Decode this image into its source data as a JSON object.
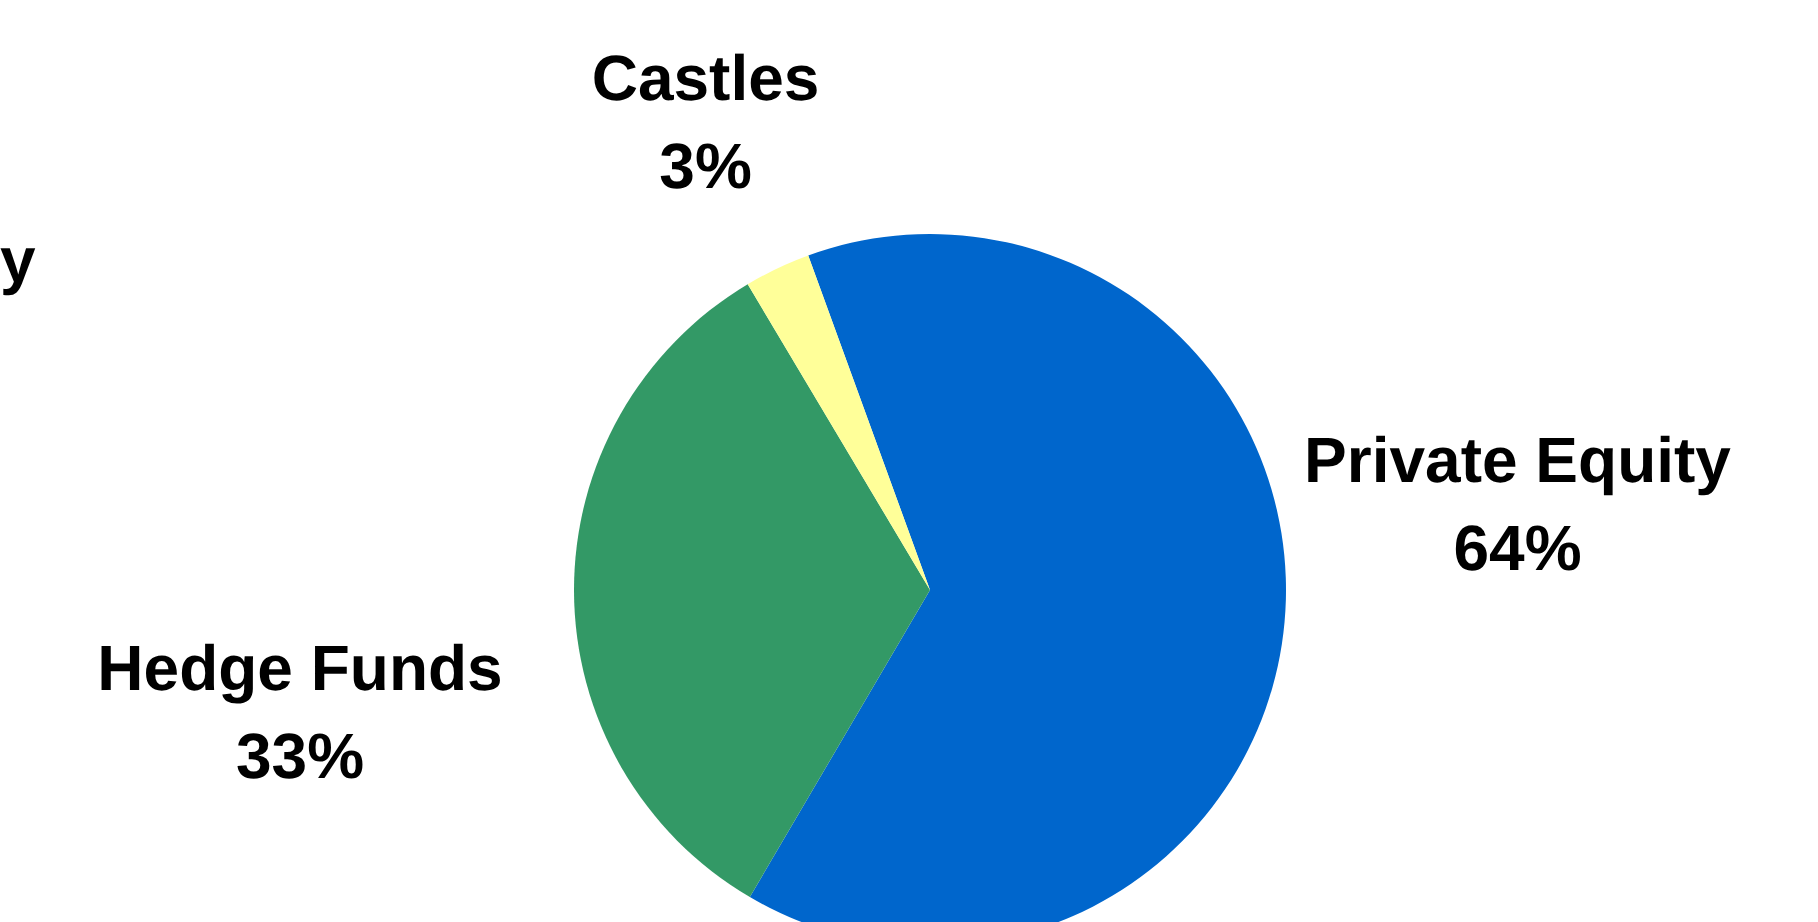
{
  "chart_data": {
    "type": "pie",
    "categories": [
      "Private Equity",
      "Hedge Funds",
      "Castles"
    ],
    "values": [
      64,
      33,
      3
    ],
    "value_labels": [
      "64%",
      "33%",
      "3%"
    ],
    "colors": [
      "#0066cc",
      "#339966",
      "#ffff99"
    ],
    "annotations": [
      "y"
    ]
  }
}
